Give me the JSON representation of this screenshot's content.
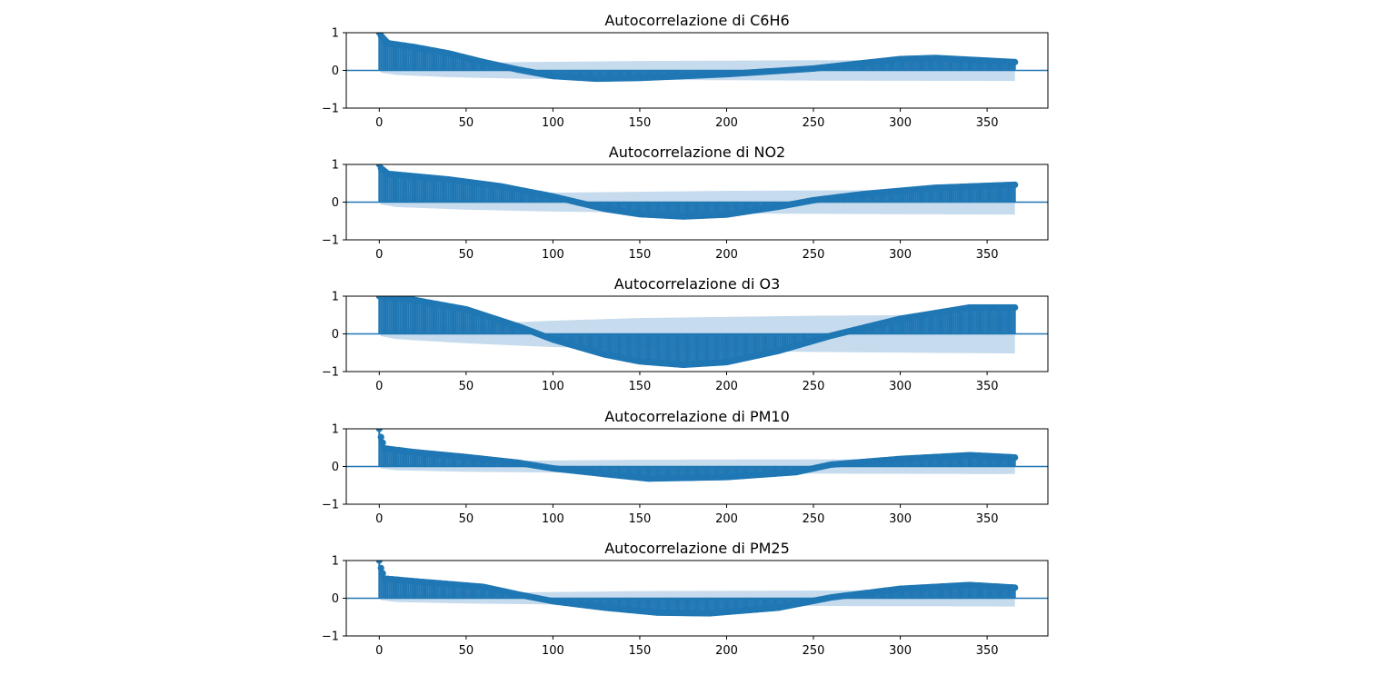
{
  "colors": {
    "stem": "#1f77b4",
    "confidence_band": "#c6dbed",
    "axis": "#000000"
  },
  "chart_data": [
    {
      "type": "bar",
      "title": "Autocorrelazione di C6H6",
      "xlim": [
        -19,
        385
      ],
      "ylim": [
        -1,
        1
      ],
      "xticks": [
        0,
        50,
        100,
        150,
        200,
        250,
        300,
        350
      ],
      "yticks": [
        -1,
        0,
        1
      ],
      "grid": false,
      "max_lag": 366,
      "acf_profile": [
        [
          0,
          1.0
        ],
        [
          1,
          0.92
        ],
        [
          5,
          0.72
        ],
        [
          20,
          0.62
        ],
        [
          40,
          0.45
        ],
        [
          60,
          0.22
        ],
        [
          80,
          0.02
        ],
        [
          100,
          -0.15
        ],
        [
          125,
          -0.22
        ],
        [
          150,
          -0.2
        ],
        [
          200,
          -0.1
        ],
        [
          250,
          0.05
        ],
        [
          280,
          0.2
        ],
        [
          300,
          0.3
        ],
        [
          320,
          0.33
        ],
        [
          366,
          0.22
        ]
      ],
      "confint_profile": [
        [
          0,
          0.0
        ],
        [
          1,
          0.06
        ],
        [
          10,
          0.12
        ],
        [
          40,
          0.18
        ],
        [
          80,
          0.22
        ],
        [
          150,
          0.25
        ],
        [
          250,
          0.27
        ],
        [
          366,
          0.28
        ]
      ]
    },
    {
      "type": "bar",
      "title": "Autocorrelazione di NO2",
      "xlim": [
        -19,
        385
      ],
      "ylim": [
        -1,
        1
      ],
      "xticks": [
        0,
        50,
        100,
        150,
        200,
        250,
        300,
        350
      ],
      "yticks": [
        -1,
        0,
        1
      ],
      "grid": false,
      "max_lag": 366,
      "acf_profile": [
        [
          0,
          1.0
        ],
        [
          1,
          0.9
        ],
        [
          5,
          0.75
        ],
        [
          40,
          0.6
        ],
        [
          70,
          0.42
        ],
        [
          100,
          0.15
        ],
        [
          130,
          -0.18
        ],
        [
          150,
          -0.32
        ],
        [
          175,
          -0.38
        ],
        [
          200,
          -0.33
        ],
        [
          230,
          -0.12
        ],
        [
          250,
          0.05
        ],
        [
          280,
          0.22
        ],
        [
          320,
          0.38
        ],
        [
          366,
          0.46
        ]
      ],
      "confint_profile": [
        [
          0,
          0.0
        ],
        [
          1,
          0.06
        ],
        [
          10,
          0.13
        ],
        [
          50,
          0.2
        ],
        [
          100,
          0.25
        ],
        [
          200,
          0.3
        ],
        [
          300,
          0.32
        ],
        [
          366,
          0.33
        ]
      ]
    },
    {
      "type": "bar",
      "title": "Autocorrelazione di O3",
      "xlim": [
        -19,
        385
      ],
      "ylim": [
        -1,
        1
      ],
      "xticks": [
        0,
        50,
        100,
        150,
        200,
        250,
        300,
        350
      ],
      "yticks": [
        -1,
        0,
        1
      ],
      "grid": false,
      "max_lag": 366,
      "acf_profile": [
        [
          0,
          1.0
        ],
        [
          20,
          0.9
        ],
        [
          50,
          0.65
        ],
        [
          80,
          0.2
        ],
        [
          100,
          -0.15
        ],
        [
          130,
          -0.55
        ],
        [
          150,
          -0.73
        ],
        [
          175,
          -0.82
        ],
        [
          200,
          -0.75
        ],
        [
          230,
          -0.45
        ],
        [
          260,
          -0.05
        ],
        [
          300,
          0.4
        ],
        [
          340,
          0.7
        ],
        [
          366,
          0.7
        ]
      ],
      "confint_profile": [
        [
          0,
          0.0
        ],
        [
          1,
          0.06
        ],
        [
          10,
          0.14
        ],
        [
          50,
          0.25
        ],
        [
          100,
          0.35
        ],
        [
          150,
          0.42
        ],
        [
          250,
          0.48
        ],
        [
          366,
          0.52
        ]
      ]
    },
    {
      "type": "bar",
      "title": "Autocorrelazione di PM10",
      "xlim": [
        -19,
        385
      ],
      "ylim": [
        -1,
        1
      ],
      "xticks": [
        0,
        50,
        100,
        150,
        200,
        250,
        300,
        350
      ],
      "yticks": [
        -1,
        0,
        1
      ],
      "grid": false,
      "max_lag": 366,
      "acf_profile": [
        [
          0,
          1.0
        ],
        [
          1,
          0.78
        ],
        [
          3,
          0.48
        ],
        [
          20,
          0.38
        ],
        [
          50,
          0.25
        ],
        [
          80,
          0.1
        ],
        [
          100,
          -0.05
        ],
        [
          130,
          -0.2
        ],
        [
          155,
          -0.32
        ],
        [
          200,
          -0.28
        ],
        [
          240,
          -0.15
        ],
        [
          260,
          0.05
        ],
        [
          300,
          0.2
        ],
        [
          340,
          0.3
        ],
        [
          366,
          0.24
        ]
      ],
      "confint_profile": [
        [
          0,
          0.0
        ],
        [
          1,
          0.05
        ],
        [
          10,
          0.1
        ],
        [
          50,
          0.14
        ],
        [
          150,
          0.18
        ],
        [
          366,
          0.2
        ]
      ]
    },
    {
      "type": "bar",
      "title": "Autocorrelazione di PM25",
      "xlim": [
        -19,
        385
      ],
      "ylim": [
        -1,
        1
      ],
      "xticks": [
        0,
        50,
        100,
        150,
        200,
        250,
        300,
        350
      ],
      "yticks": [
        -1,
        0,
        1
      ],
      "grid": false,
      "max_lag": 366,
      "acf_profile": [
        [
          0,
          1.0
        ],
        [
          1,
          0.8
        ],
        [
          3,
          0.52
        ],
        [
          20,
          0.45
        ],
        [
          60,
          0.3
        ],
        [
          80,
          0.1
        ],
        [
          100,
          -0.08
        ],
        [
          130,
          -0.25
        ],
        [
          160,
          -0.38
        ],
        [
          190,
          -0.4
        ],
        [
          230,
          -0.25
        ],
        [
          260,
          0.02
        ],
        [
          300,
          0.25
        ],
        [
          340,
          0.35
        ],
        [
          366,
          0.28
        ]
      ],
      "confint_profile": [
        [
          0,
          0.0
        ],
        [
          1,
          0.05
        ],
        [
          10,
          0.1
        ],
        [
          50,
          0.14
        ],
        [
          150,
          0.19
        ],
        [
          366,
          0.22
        ]
      ]
    }
  ]
}
